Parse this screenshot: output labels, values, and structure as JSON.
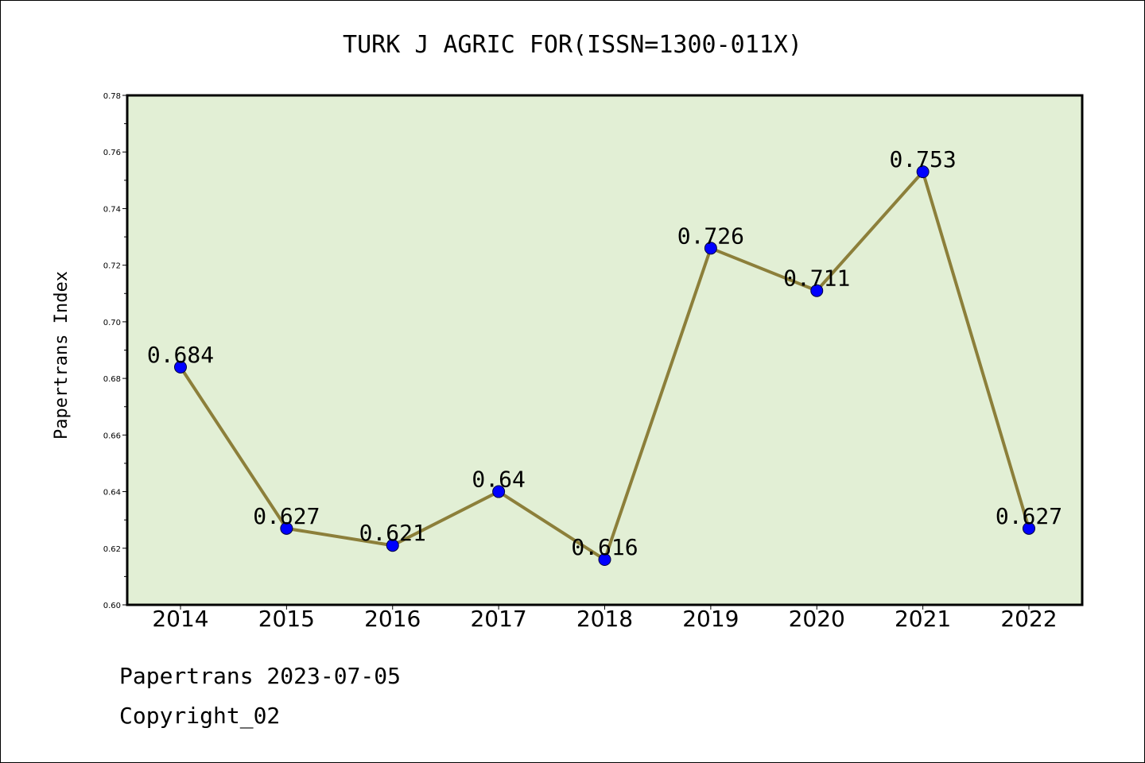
{
  "chart_data": {
    "type": "line",
    "title": "TURK J AGRIC FOR(ISSN=1300-011X)",
    "ylabel": "Papertrans Index",
    "xlabel": "",
    "categories": [
      "2014",
      "2015",
      "2016",
      "2017",
      "2018",
      "2019",
      "2020",
      "2021",
      "2022"
    ],
    "values": [
      0.684,
      0.627,
      0.621,
      0.64,
      0.616,
      0.726,
      0.711,
      0.753,
      0.627
    ],
    "data_labels": [
      "0.684",
      "0.627",
      "0.621",
      "0.64",
      "0.616",
      "0.726",
      "0.711",
      "0.753",
      "0.627"
    ],
    "ylim": [
      0.6,
      0.78
    ],
    "yticks": [
      "0.60",
      "0.62",
      "0.64",
      "0.66",
      "0.68",
      "0.70",
      "0.72",
      "0.74",
      "0.76",
      "0.78"
    ],
    "grid": false,
    "colors": {
      "plot_background": "#e2efd5",
      "line": "#8c7f3a",
      "marker": "#0000ff"
    }
  },
  "footer": {
    "line1": "Papertrans 2023-07-05",
    "line2": "Copyright_02"
  }
}
